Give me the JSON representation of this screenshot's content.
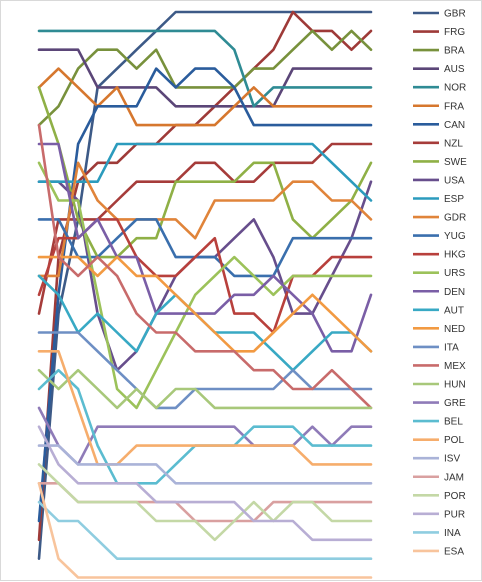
{
  "chart_data": {
    "type": "line",
    "subtype": "bump",
    "title": "",
    "xlabel": "",
    "ylabel": "",
    "x": [
      0,
      1,
      2,
      3,
      4,
      5,
      6,
      7,
      8,
      9,
      10,
      11,
      12,
      13,
      14,
      15,
      16,
      17
    ],
    "ylim": [
      1,
      30
    ],
    "y_inverted": true,
    "grid": false,
    "legend_position": "right",
    "series": [
      {
        "name": "GBR",
        "color": "#3d5a87",
        "values": [
          30,
          17,
          12,
          5,
          4,
          3,
          2,
          1,
          1,
          1,
          1,
          1,
          1,
          1,
          1,
          1,
          1,
          1
        ]
      },
      {
        "name": "FRG",
        "color": "#9e3a38",
        "values": [
          29,
          14,
          10,
          9,
          9,
          8,
          8,
          7,
          7,
          6,
          5,
          4,
          3,
          1,
          2,
          2,
          3,
          2
        ]
      },
      {
        "name": "BRA",
        "color": "#78913c",
        "values": [
          7,
          6,
          4,
          3,
          3,
          4,
          3,
          5,
          5,
          5,
          5,
          4,
          4,
          3,
          2,
          3,
          2,
          3
        ]
      },
      {
        "name": "AUS",
        "color": "#5b4678",
        "values": [
          3,
          3,
          3,
          5,
          5,
          5,
          5,
          6,
          6,
          6,
          6,
          6,
          6,
          4,
          4,
          4,
          4,
          4
        ]
      },
      {
        "name": "NOR",
        "color": "#2f8b94",
        "values": [
          2,
          2,
          2,
          2,
          2,
          2,
          2,
          2,
          2,
          2,
          3,
          6,
          5,
          5,
          5,
          5,
          5,
          5
        ]
      },
      {
        "name": "FRA",
        "color": "#d6772e",
        "values": [
          5,
          4,
          5,
          6,
          5,
          7,
          7,
          7,
          7,
          7,
          6,
          5,
          6,
          6,
          6,
          6,
          6,
          6
        ]
      },
      {
        "name": "CAN",
        "color": "#2a5c9c",
        "values": [
          28,
          16,
          8,
          6,
          6,
          6,
          4,
          5,
          4,
          4,
          5,
          7,
          7,
          7,
          7,
          7,
          7,
          7
        ]
      },
      {
        "name": "NZL",
        "color": "#a63c3a",
        "values": [
          17,
          12,
          12,
          12,
          11,
          10,
          10,
          10,
          9,
          9,
          10,
          10,
          9,
          9,
          9,
          8,
          8,
          8
        ]
      },
      {
        "name": "SWE",
        "color": "#8fb046",
        "values": [
          5,
          8,
          12,
          14,
          14,
          13,
          13,
          10,
          10,
          10,
          10,
          9,
          9,
          12,
          13,
          12,
          11,
          9
        ]
      },
      {
        "name": "USA",
        "color": "#674e8c",
        "values": [
          10,
          10,
          11,
          17,
          20,
          19,
          17,
          15,
          14,
          14,
          13,
          12,
          14,
          17,
          17,
          15,
          13,
          10
        ]
      },
      {
        "name": "ESP",
        "color": "#2b9bbd",
        "values": [
          10,
          10,
          10,
          10,
          8,
          8,
          8,
          8,
          8,
          8,
          8,
          8,
          8,
          8,
          8,
          9,
          10,
          11
        ]
      },
      {
        "name": "GDR",
        "color": "#e0843a",
        "values": [
          15,
          15,
          9,
          11,
          12,
          12,
          12,
          12,
          13,
          11,
          11,
          11,
          11,
          10,
          10,
          11,
          11,
          12
        ]
      },
      {
        "name": "YUG",
        "color": "#3a6fad",
        "values": [
          12,
          12,
          14,
          14,
          13,
          12,
          12,
          14,
          14,
          14,
          15,
          15,
          15,
          13,
          13,
          13,
          13,
          13
        ]
      },
      {
        "name": "HKG",
        "color": "#b8403c",
        "values": [
          16,
          13,
          13,
          12,
          12,
          14,
          15,
          15,
          14,
          13,
          17,
          17,
          18,
          15,
          15,
          14,
          14,
          14
        ]
      },
      {
        "name": "URS",
        "color": "#9cc25a",
        "values": [
          9,
          11,
          11,
          16,
          21,
          22,
          20,
          18,
          16,
          15,
          14,
          15,
          16,
          15,
          15,
          15,
          15,
          15
        ]
      },
      {
        "name": "DEN",
        "color": "#7a5ea6",
        "values": [
          8,
          8,
          13,
          12,
          14,
          14,
          17,
          17,
          17,
          17,
          16,
          16,
          15,
          16,
          17,
          19,
          19,
          16
        ]
      },
      {
        "name": "AUT",
        "color": "#38a9c4",
        "values": [
          15,
          16,
          18,
          17,
          18,
          19,
          17,
          16,
          17,
          18,
          18,
          18,
          19,
          20,
          19,
          18,
          18,
          19
        ]
      },
      {
        "name": "NED",
        "color": "#f29a42",
        "values": [
          14,
          14,
          14,
          15,
          14,
          15,
          15,
          16,
          17,
          18,
          19,
          19,
          18,
          17,
          16,
          17,
          18,
          19
        ]
      },
      {
        "name": "ITA",
        "color": "#6e8fc4",
        "values": [
          18,
          18,
          18,
          19,
          20,
          21,
          22,
          22,
          21,
          21,
          21,
          21,
          21,
          20,
          21,
          21,
          21,
          21
        ]
      },
      {
        "name": "MEX",
        "color": "#c86b6b",
        "values": [
          7,
          14,
          15,
          14,
          15,
          17,
          18,
          18,
          19,
          19,
          19,
          20,
          20,
          21,
          21,
          20,
          21,
          22
        ]
      },
      {
        "name": "HUN",
        "color": "#a8c87a",
        "values": [
          20,
          21,
          20,
          21,
          22,
          21,
          22,
          21,
          21,
          22,
          22,
          22,
          22,
          22,
          22,
          22,
          22,
          22
        ]
      },
      {
        "name": "GRE",
        "color": "#8f7bb8",
        "values": [
          22,
          24,
          25,
          23,
          23,
          23,
          23,
          23,
          23,
          23,
          23,
          24,
          24,
          24,
          23,
          24,
          23,
          23
        ]
      },
      {
        "name": "BEL",
        "color": "#5bbcd0",
        "values": [
          21,
          20,
          21,
          24,
          26,
          26,
          26,
          25,
          24,
          24,
          24,
          23,
          23,
          23,
          24,
          24,
          24,
          24
        ]
      },
      {
        "name": "POL",
        "color": "#f6ad6c",
        "values": [
          19,
          19,
          22,
          25,
          25,
          24,
          24,
          24,
          24,
          24,
          24,
          24,
          24,
          24,
          25,
          25,
          25,
          25
        ]
      },
      {
        "name": "ISV",
        "color": "#aab3d8",
        "values": [
          24,
          24,
          25,
          25,
          25,
          25,
          25,
          26,
          26,
          26,
          26,
          26,
          26,
          26,
          26,
          26,
          26,
          26
        ]
      },
      {
        "name": "JAM",
        "color": "#d9a0a0",
        "values": [
          26,
          26,
          27,
          27,
          27,
          27,
          27,
          27,
          28,
          28,
          28,
          28,
          27,
          27,
          27,
          27,
          27,
          27
        ]
      },
      {
        "name": "POR",
        "color": "#c4d8a6",
        "values": [
          25,
          26,
          27,
          27,
          27,
          27,
          28,
          28,
          28,
          29,
          28,
          27,
          28,
          27,
          27,
          28,
          28,
          28
        ]
      },
      {
        "name": "PUR",
        "color": "#b8aed4",
        "values": [
          23,
          25,
          26,
          26,
          26,
          26,
          27,
          27,
          27,
          27,
          27,
          28,
          28,
          28,
          29,
          29,
          29,
          29
        ]
      },
      {
        "name": "INA",
        "color": "#8fcde0",
        "values": [
          27,
          28,
          28,
          29,
          30,
          30,
          30,
          30,
          30,
          30,
          30,
          30,
          30,
          30,
          30,
          30,
          30,
          30
        ]
      },
      {
        "name": "ESA",
        "color": "#f8c49c",
        "values": [
          26,
          30,
          31,
          31,
          31,
          31,
          31,
          31,
          31,
          31,
          31,
          31,
          31,
          31,
          31,
          31,
          31,
          31
        ]
      }
    ]
  }
}
